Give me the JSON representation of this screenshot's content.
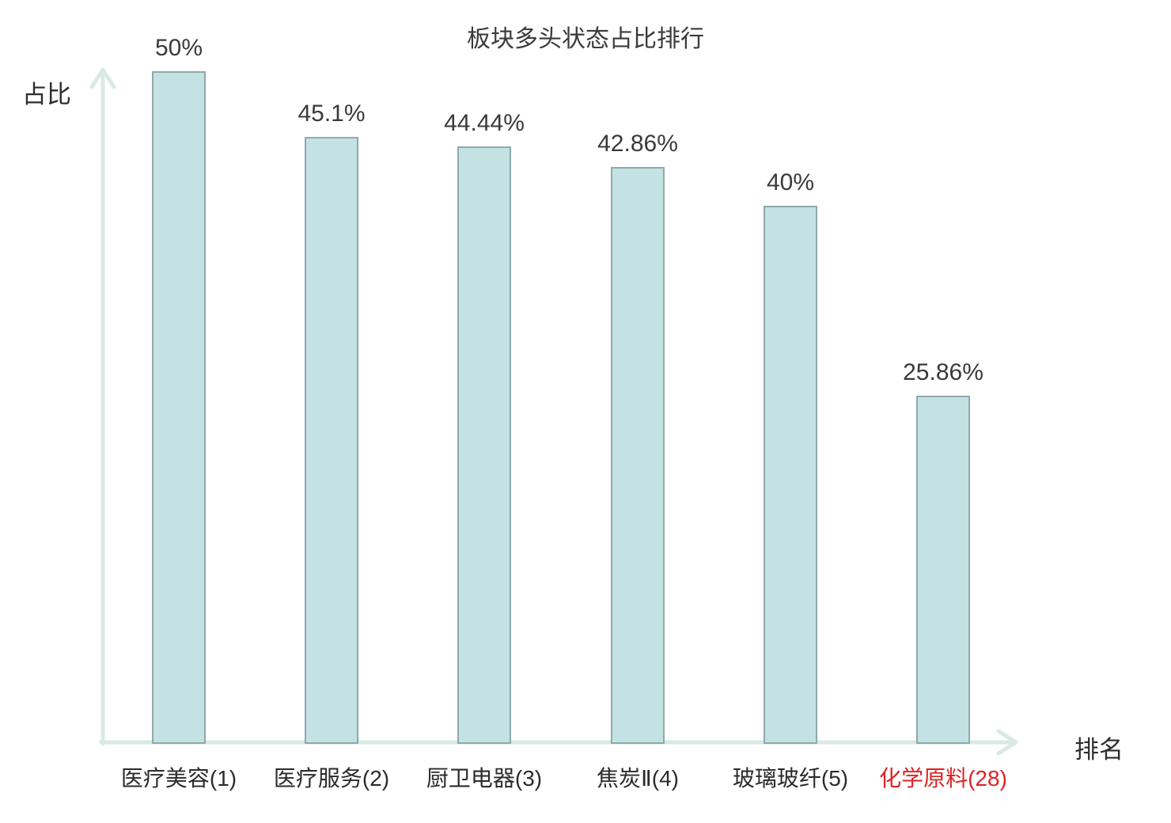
{
  "chart_data": {
    "type": "bar",
    "title": "板块多头状态占比排行",
    "xlabel": "排名",
    "ylabel": "占比",
    "categories": [
      "医疗美容(1)",
      "医疗服务(2)",
      "厨卫电器(3)",
      "焦炭Ⅱ(4)",
      "玻璃玻纤(5)",
      "化学原料(28)"
    ],
    "values": [
      50,
      45.1,
      44.44,
      42.86,
      40,
      25.86
    ],
    "value_labels": [
      "50%",
      "45.1%",
      "44.44%",
      "42.86%",
      "40%",
      "25.86%"
    ],
    "highlight_index": 5,
    "ylim": [
      0,
      50
    ],
    "grid": false,
    "legend": "none",
    "colors": {
      "bar_fill": "#c4e1e4",
      "bar_border": "#8fa9ad",
      "axis": "#d9eae3",
      "text": "#3a3a3a",
      "category_text": "#2b2b2b",
      "highlight_text": "#e02222"
    }
  }
}
